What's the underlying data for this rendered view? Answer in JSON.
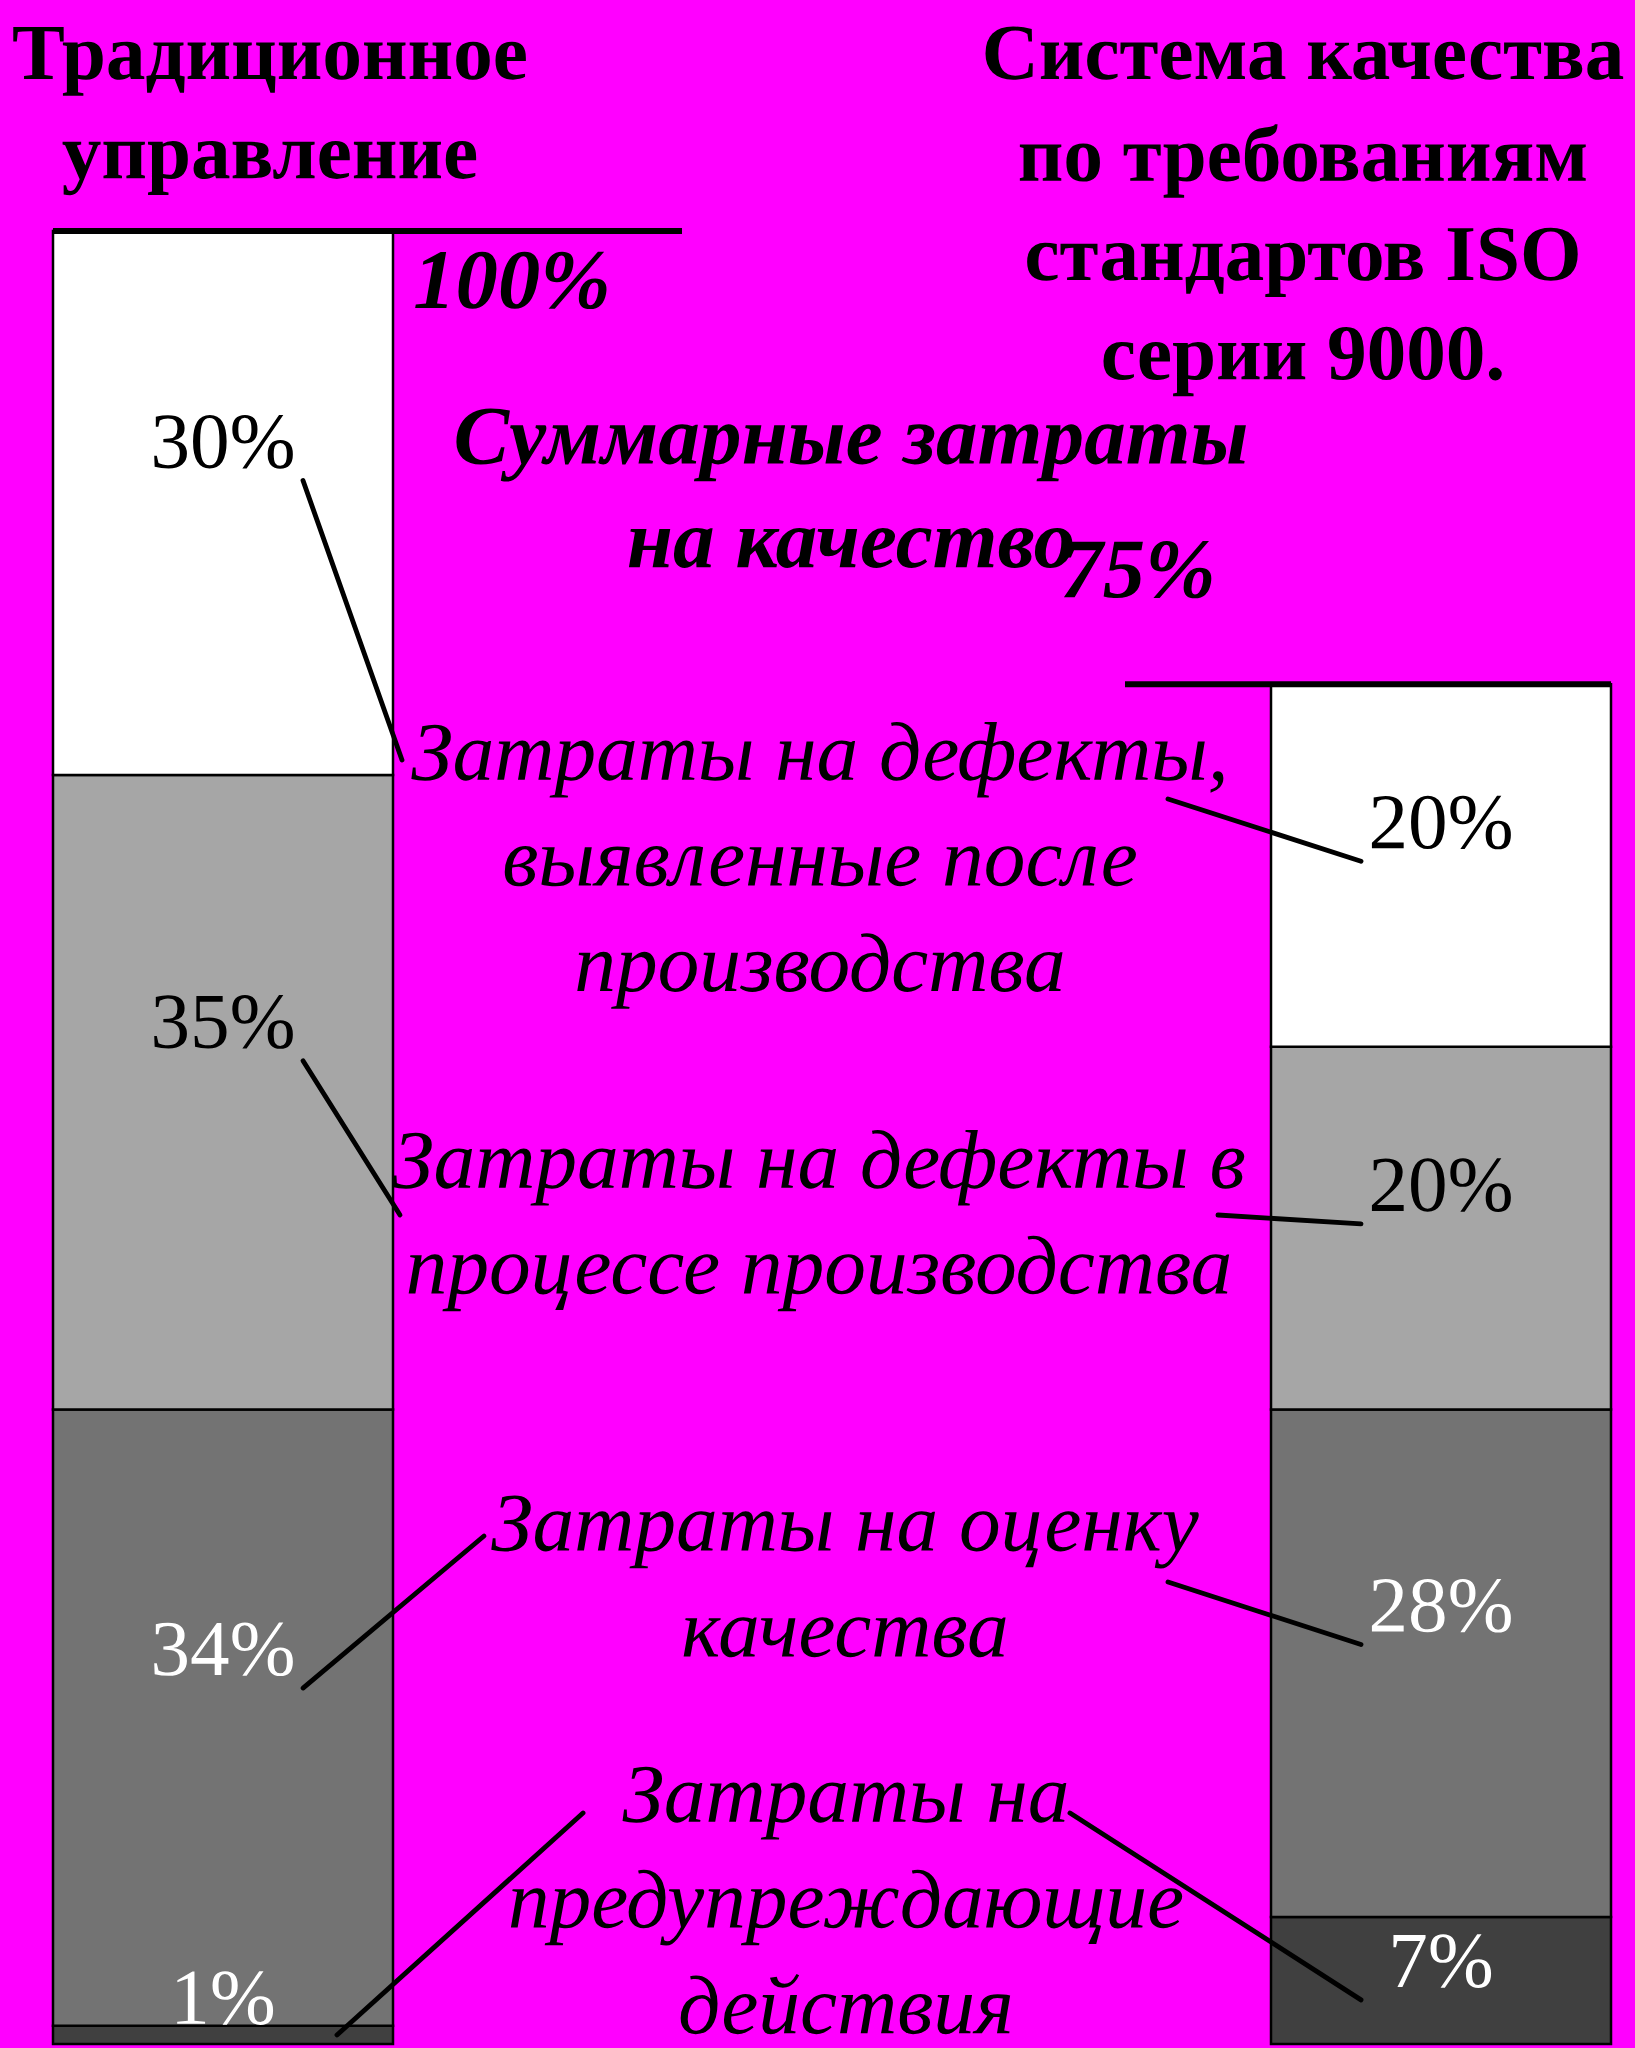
{
  "chart_data": {
    "type": "bar",
    "stacked": true,
    "categories": [
      "Традиционное\nуправление",
      "Система качества\nпо требованиям\nстандартов ISO\nсерии 9000."
    ],
    "series": [
      {
        "name": "Затраты на\nпредупреждающие\nдействия",
        "color": "#404040",
        "values": [
          1,
          7
        ],
        "value_labels": [
          "1%",
          "7%"
        ]
      },
      {
        "name": "Затраты на оценку\nкачества",
        "color": "#737373",
        "values": [
          34,
          28
        ],
        "value_labels": [
          "34%",
          "28%"
        ]
      },
      {
        "name": "Затраты на дефекты в\nпроцессе производства",
        "color": "#a6a6a6",
        "values": [
          35,
          20
        ],
        "value_labels": [
          "35%",
          "20%"
        ]
      },
      {
        "name": "Затраты на дефекты,\nвыявленные после\nпроизводства",
        "color": "#ffffff",
        "values": [
          30,
          20
        ],
        "value_labels": [
          "30%",
          "20%"
        ]
      }
    ],
    "legend": "center",
    "totals": [
      "100%",
      "75%"
    ],
    "annotations": [
      "Суммарные затраты\nна качество"
    ]
  }
}
